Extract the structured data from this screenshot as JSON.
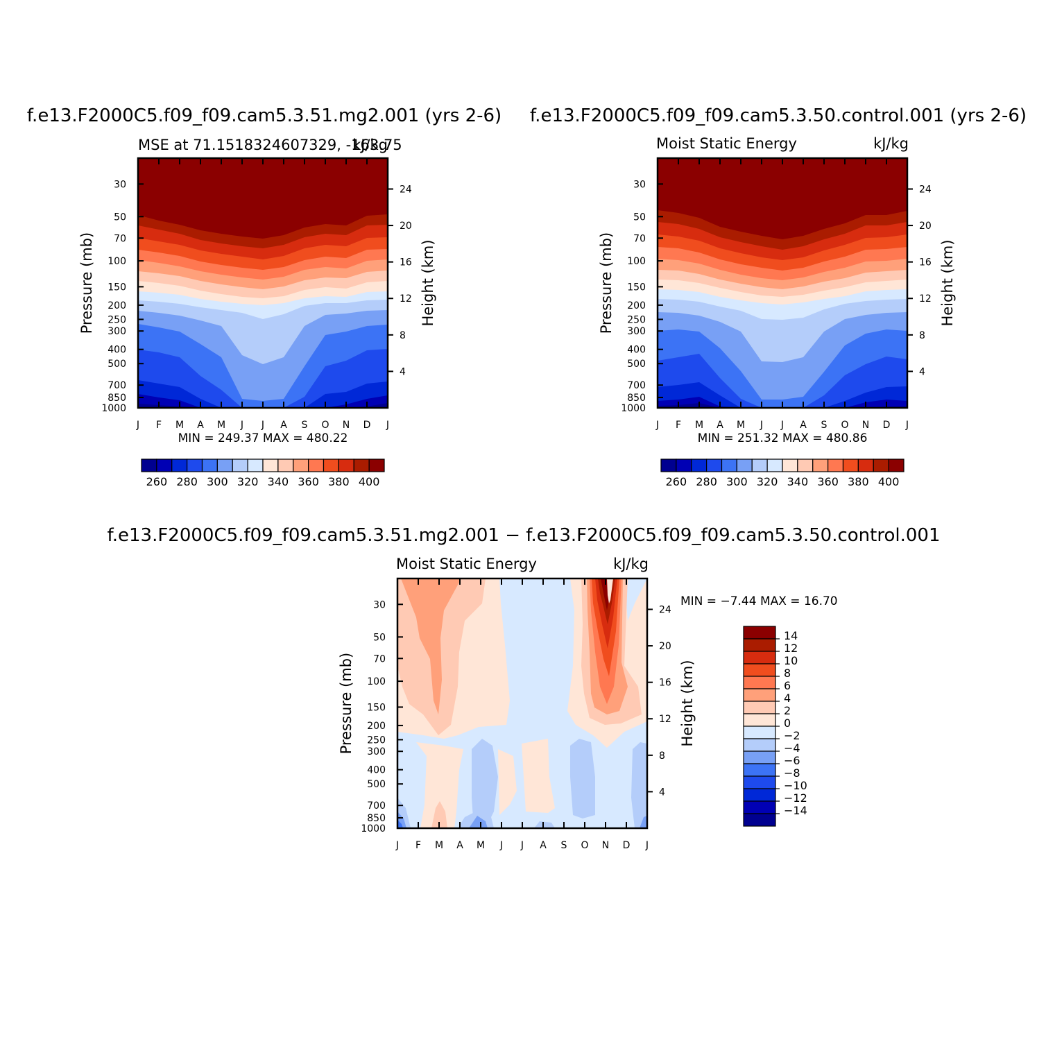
{
  "panels": [
    {
      "id": "p1",
      "title": "f.e13.F2000C5.f09_f09.cam5.3.51.mg2.001 (yrs 2-6)",
      "left_label": "MSE at 71.1518324607329,  -163.75",
      "right_label": "kJ/kg",
      "left_axis_label": "Pressure (mb)",
      "right_axis_label": "Height (km)",
      "stats": "MIN = 249.37  MAX = 480.22"
    },
    {
      "id": "p2",
      "title": "f.e13.F2000C5.f09_f09.cam5.3.50.control.001 (yrs 2-6)",
      "left_label": "Moist Static Energy",
      "right_label": "kJ/kg",
      "left_axis_label": "Pressure (mb)",
      "right_axis_label": "Height (km)",
      "stats": "MIN = 251.32  MAX = 480.86"
    },
    {
      "id": "p3",
      "title": "f.e13.F2000C5.f09_f09.cam5.3.51.mg2.001 − f.e13.F2000C5.f09_f09.cam5.3.50.control.001",
      "left_label": "Moist Static Energy",
      "right_label": "kJ/kg",
      "left_axis_label": "Pressure (mb)",
      "right_axis_label": "Height (km)",
      "stats": "MIN =   −7.44  MAX =   16.70"
    }
  ],
  "chart_data": [
    {
      "type": "heatmap",
      "title": "f.e13.F2000C5.f09_f09.cam5.3.51.mg2.001 (yrs 2-6)",
      "subtitle": "MSE at 71.1518324607329,  -163.75",
      "units": "kJ/kg",
      "ylabel": "Pressure (mb)",
      "ylabel_right": "Height (km)",
      "x_ticks": [
        "J",
        "F",
        "M",
        "A",
        "M",
        "J",
        "J",
        "A",
        "S",
        "O",
        "N",
        "D",
        "J"
      ],
      "y_ticks": [
        "30",
        "50",
        "70",
        "100",
        "150",
        "200",
        "250",
        "300",
        "400",
        "500",
        "700",
        "850",
        "1000"
      ],
      "y_right_ticks": [
        "24",
        "20",
        "16",
        "12",
        "8",
        "4"
      ],
      "y_scale": "log, reversed",
      "ylim": [
        1000,
        20
      ],
      "colorbar_levels": [
        260,
        270,
        280,
        290,
        300,
        310,
        320,
        330,
        340,
        350,
        360,
        370,
        380,
        390,
        400
      ],
      "colorbar_labels": [
        "260",
        "280",
        "300",
        "320",
        "340",
        "360",
        "380",
        "400"
      ],
      "colors": [
        "#000090",
        "#0000b4",
        "#0028d7",
        "#1e4aed",
        "#3c73f5",
        "#78a0f5",
        "#b4cdfa",
        "#d7e9ff",
        "#ffe6d7",
        "#ffcab4",
        "#ffa07a",
        "#ff7851",
        "#f04d1e",
        "#d72c0f",
        "#aa1c00",
        "#8b0000"
      ],
      "min": 249.37,
      "max": 480.22,
      "grid": false,
      "legend": "colorbar below"
    },
    {
      "type": "heatmap",
      "title": "f.e13.F2000C5.f09_f09.cam5.3.50.control.001 (yrs 2-6)",
      "subtitle": "Moist Static Energy",
      "units": "kJ/kg",
      "ylabel": "Pressure (mb)",
      "ylabel_right": "Height (km)",
      "x_ticks": [
        "J",
        "F",
        "M",
        "A",
        "M",
        "J",
        "J",
        "A",
        "S",
        "O",
        "N",
        "D",
        "J"
      ],
      "y_ticks": [
        "30",
        "50",
        "70",
        "100",
        "150",
        "200",
        "250",
        "300",
        "400",
        "500",
        "700",
        "850",
        "1000"
      ],
      "y_right_ticks": [
        "24",
        "20",
        "16",
        "12",
        "8",
        "4"
      ],
      "y_scale": "log, reversed",
      "ylim": [
        1000,
        20
      ],
      "colorbar_levels": [
        260,
        270,
        280,
        290,
        300,
        310,
        320,
        330,
        340,
        350,
        360,
        370,
        380,
        390,
        400
      ],
      "colorbar_labels": [
        "260",
        "280",
        "300",
        "320",
        "340",
        "360",
        "380",
        "400"
      ],
      "colors": [
        "#000090",
        "#0000b4",
        "#0028d7",
        "#1e4aed",
        "#3c73f5",
        "#78a0f5",
        "#b4cdfa",
        "#d7e9ff",
        "#ffe6d7",
        "#ffcab4",
        "#ffa07a",
        "#ff7851",
        "#f04d1e",
        "#d72c0f",
        "#aa1c00",
        "#8b0000"
      ],
      "min": 251.32,
      "max": 480.86,
      "grid": false,
      "legend": "colorbar below"
    },
    {
      "type": "heatmap",
      "title": "f.e13.F2000C5.f09_f09.cam5.3.51.mg2.001 − f.e13.F2000C5.f09_f09.cam5.3.50.control.001",
      "subtitle": "Moist Static Energy",
      "units": "kJ/kg",
      "ylabel": "Pressure (mb)",
      "ylabel_right": "Height (km)",
      "x_ticks": [
        "J",
        "F",
        "M",
        "A",
        "M",
        "J",
        "J",
        "A",
        "S",
        "O",
        "N",
        "D",
        "J"
      ],
      "y_ticks": [
        "30",
        "50",
        "70",
        "100",
        "150",
        "200",
        "250",
        "300",
        "400",
        "500",
        "700",
        "850",
        "1000"
      ],
      "y_right_ticks": [
        "24",
        "20",
        "16",
        "12",
        "8",
        "4"
      ],
      "y_scale": "log, reversed",
      "ylim": [
        1000,
        20
      ],
      "colorbar_levels": [
        14,
        12,
        10,
        8,
        6,
        4,
        2,
        0,
        -2,
        -4,
        -6,
        -8,
        -10,
        -12,
        -14
      ],
      "colorbar_labels": [
        "14",
        "12",
        "10",
        "8",
        "6",
        "4",
        "2",
        "0",
        "−2",
        "−4",
        "−6",
        "−8",
        "−10",
        "−12",
        "−14"
      ],
      "colors": [
        "#8b0000",
        "#aa1c00",
        "#d72c0f",
        "#f04d1e",
        "#ff7851",
        "#ffa07a",
        "#ffcab4",
        "#ffe6d7",
        "#d7e9ff",
        "#b4cdfa",
        "#78a0f5",
        "#3c73f5",
        "#1e4aed",
        "#0028d7",
        "#0000b4",
        "#000090"
      ],
      "min": -7.44,
      "max": 16.7,
      "grid": false,
      "legend": "colorbar right"
    }
  ]
}
